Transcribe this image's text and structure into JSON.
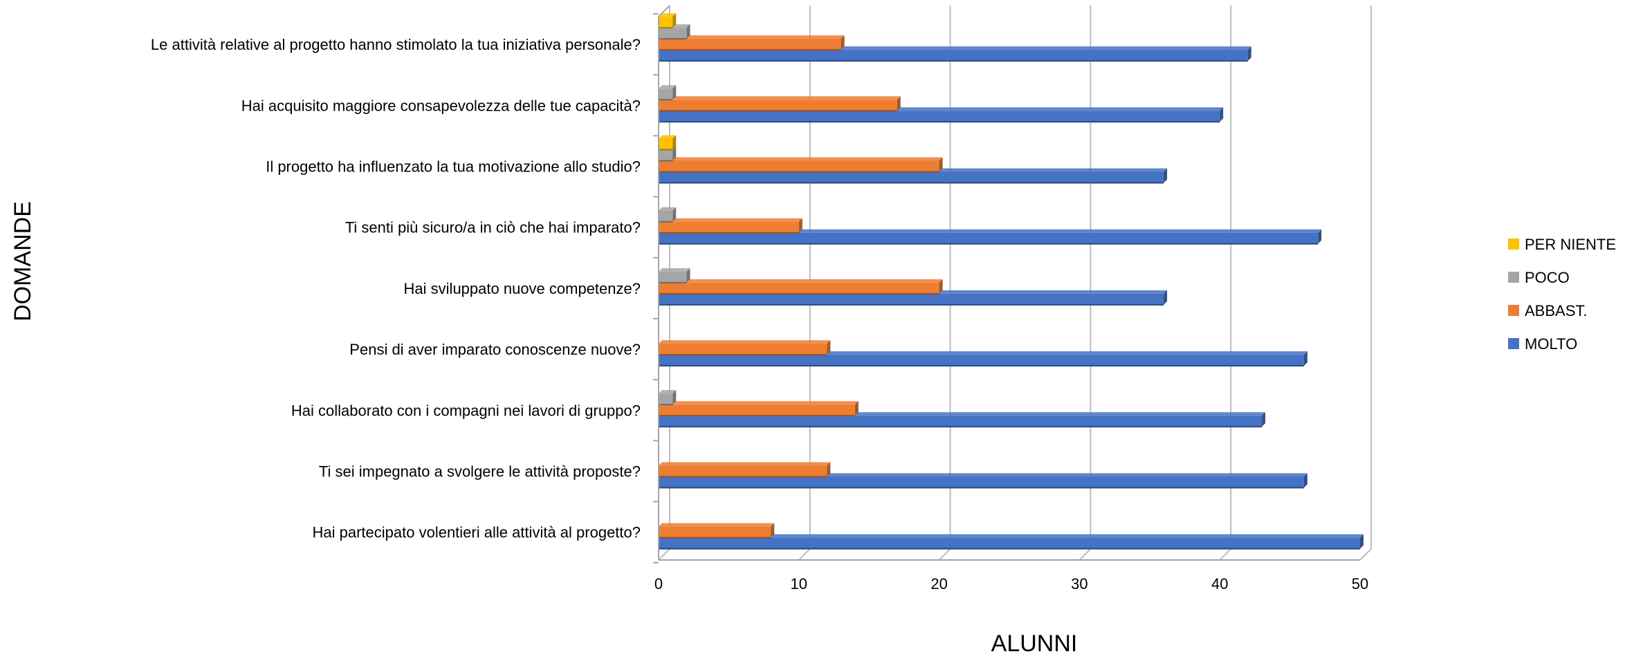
{
  "chart_data": {
    "type": "bar",
    "orientation": "horizontal",
    "title": "",
    "xlabel": "ALUNNI",
    "ylabel": "DOMANDE",
    "xlim": [
      0,
      50
    ],
    "x_ticks": [
      0,
      10,
      20,
      30,
      40,
      50
    ],
    "grid": true,
    "legend_position": "right",
    "categories": [
      "Hai partecipato volentieri alle attività al progetto?",
      "Ti sei impegnato a svolgere le attività proposte?",
      "Hai collaborato con i compagni nei lavori di gruppo?",
      "Pensi di aver imparato conoscenze nuove?",
      "Hai sviluppato nuove competenze?",
      "Ti senti più sicuro/a in ciò che hai imparato?",
      "Il progetto ha influenzato la tua motivazione allo studio?",
      "Hai acquisito maggiore consapevolezza delle tue capacità?",
      "Le attività relative al progetto hanno stimolato la tua iniziativa personale?"
    ],
    "series": [
      {
        "name": "MOLTO",
        "color": "#4472C4",
        "values": [
          50,
          46,
          43,
          46,
          36,
          47,
          36,
          40,
          42
        ]
      },
      {
        "name": "ABBAST.",
        "color": "#ED7D31",
        "values": [
          8,
          12,
          14,
          12,
          20,
          10,
          20,
          17,
          13
        ]
      },
      {
        "name": "POCO",
        "color": "#A5A5A5",
        "values": [
          0,
          0,
          1,
          0,
          2,
          1,
          1,
          1,
          2
        ]
      },
      {
        "name": "PER NIENTE",
        "color": "#FFC000",
        "values": [
          0,
          0,
          0,
          0,
          0,
          0,
          1,
          0,
          1
        ]
      }
    ],
    "legend_order": [
      "PER NIENTE",
      "POCO",
      "ABBAST.",
      "MOLTO"
    ]
  }
}
